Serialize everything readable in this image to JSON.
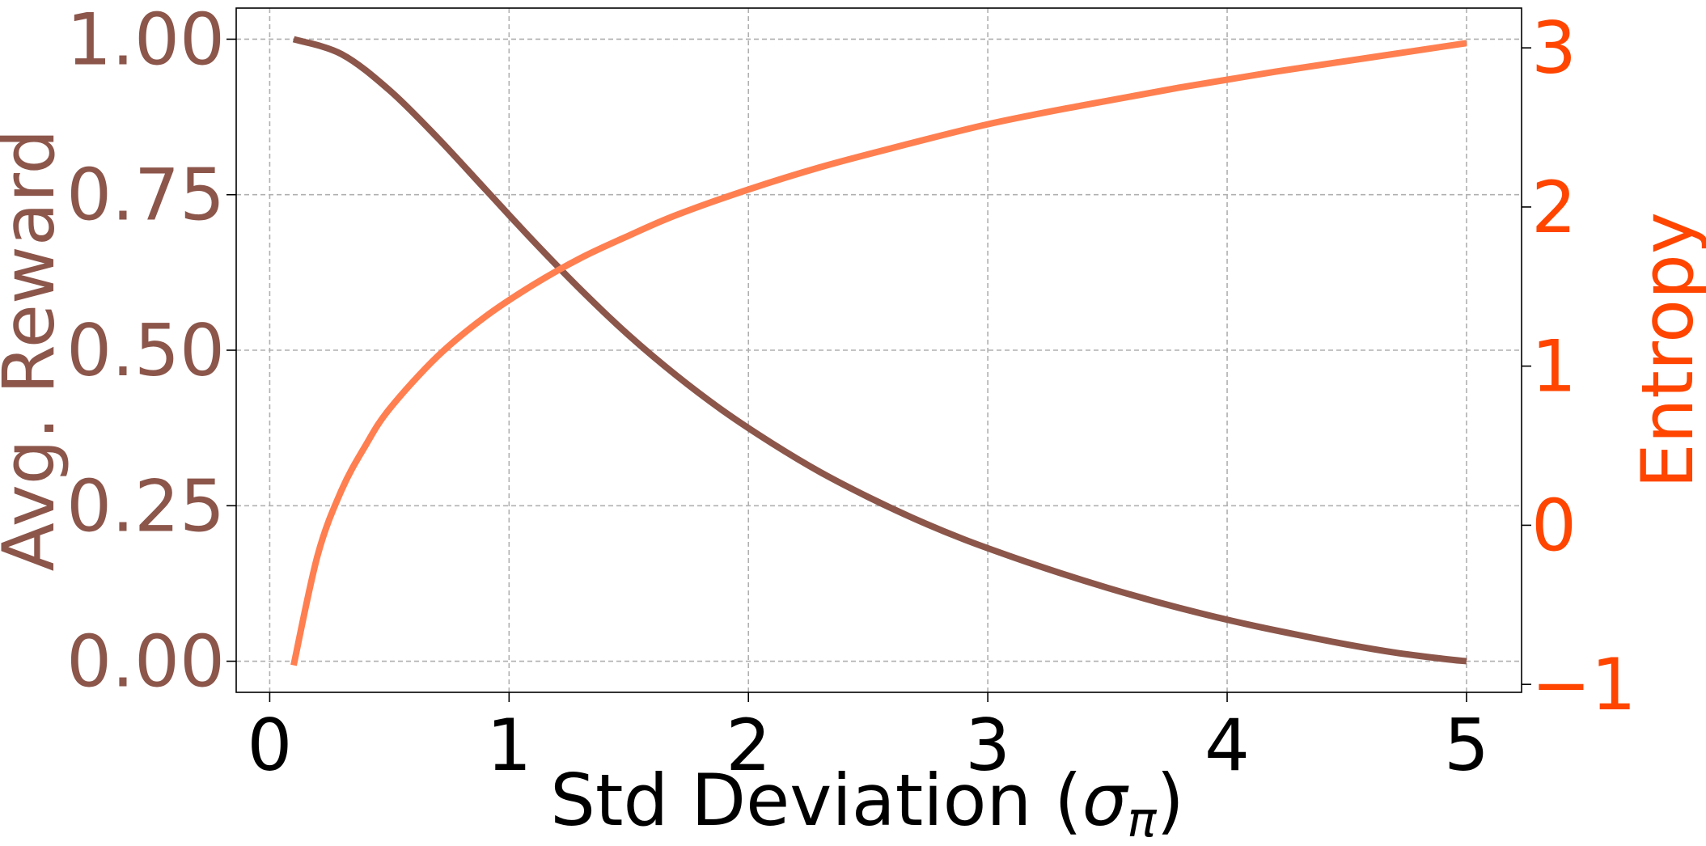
{
  "chart_data": {
    "type": "line",
    "xlabel": "Std Deviation (σπ)",
    "xlabel_parts": {
      "main": "Std Deviation (",
      "sigma": "σ",
      "sub": "π",
      "close": ")"
    },
    "ylabel_left": "Avg. Reward",
    "ylabel_right": "Entropy",
    "x_ticks": [
      "0",
      "1",
      "2",
      "3",
      "4",
      "5"
    ],
    "y_left_ticks": [
      "0.00",
      "0.25",
      "0.50",
      "0.75",
      "1.00"
    ],
    "y_right_ticks": [
      "−1",
      "0",
      "1",
      "2",
      "3"
    ],
    "xlim": [
      -0.14,
      5.23
    ],
    "ylim_left": [
      -0.05,
      1.05
    ],
    "ylim_right": [
      -1.05,
      3.25
    ],
    "grid": true,
    "series": [
      {
        "axis": "left",
        "color": "#8c564b",
        "x": [
          0.1,
          0.3,
          0.5,
          0.7,
          0.9,
          1.1,
          1.3,
          1.5,
          1.7,
          1.9,
          2.1,
          2.3,
          2.5,
          2.7,
          2.9,
          3.1,
          3.3,
          3.5,
          3.7,
          3.9,
          4.1,
          4.3,
          4.5,
          4.7,
          4.9,
          5.0
        ],
        "y": [
          1.0,
          0.976,
          0.918,
          0.842,
          0.759,
          0.676,
          0.597,
          0.524,
          0.459,
          0.401,
          0.35,
          0.304,
          0.264,
          0.228,
          0.196,
          0.168,
          0.142,
          0.118,
          0.096,
          0.076,
          0.058,
          0.042,
          0.027,
          0.014,
          0.004,
          0.0
        ]
      },
      {
        "axis": "right",
        "color": "#ff7f50",
        "x": [
          0.1,
          0.2,
          0.3,
          0.4,
          0.5,
          0.7,
          0.9,
          1.1,
          1.3,
          1.5,
          1.7,
          2.0,
          2.3,
          2.6,
          3.0,
          3.4,
          3.8,
          4.2,
          4.6,
          5.0
        ],
        "y": [
          -0.88,
          -0.19,
          0.22,
          0.5,
          0.73,
          1.06,
          1.31,
          1.51,
          1.68,
          1.82,
          1.95,
          2.11,
          2.25,
          2.37,
          2.52,
          2.64,
          2.75,
          2.85,
          2.94,
          3.03
        ]
      }
    ],
    "colors": {
      "left_axis": "#8c564b",
      "right_axis": "#ff4500",
      "x_axis": "#000000",
      "grid": "#b0b0b0"
    }
  }
}
